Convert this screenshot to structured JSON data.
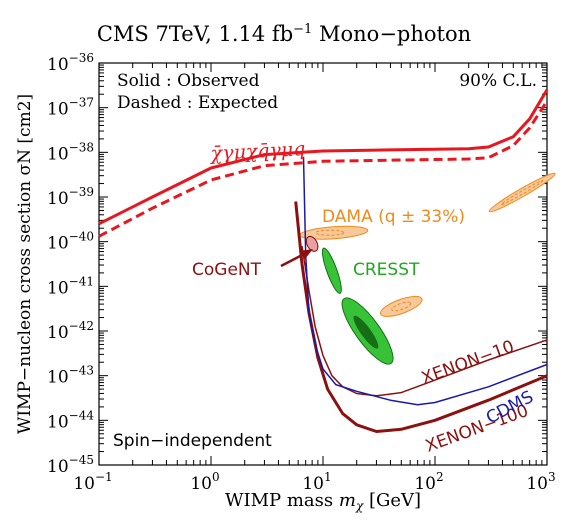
{
  "title_prefix": "CMS 7TeV, 1.14 fb",
  "title_exponent": "−1",
  "title_suffix": " Mono−photon",
  "colors": {
    "cms": "#e8171f",
    "xenon": "#8b1111",
    "cdms": "#1a1aa8",
    "cresst_fill": "#38c238",
    "cresst_dark": "#166e16",
    "dama_fill": "#f6c89a",
    "dama_edge": "#f08a1a",
    "cogent_fill": "#e8a0a0"
  },
  "chart_data": {
    "type": "line",
    "title": "CMS 7TeV, 1.14 fb−1 Mono−photon",
    "xlabel_prefix": "WIMP mass ",
    "xlabel_sym": "m",
    "xlabel_sub": "χ",
    "xlabel_suffix": " [GeV]",
    "ylabel": "WIMP−nucleon cross section σN [cm2]",
    "x_scale": "log",
    "y_scale": "log",
    "xlim": [
      0.1,
      1000
    ],
    "ylim": [
      1e-45,
      1e-36
    ],
    "x_ticks": [
      {
        "base": "10",
        "exp": "−1",
        "value": 0.1
      },
      {
        "base": "10",
        "exp": "0",
        "value": 1
      },
      {
        "base": "10",
        "exp": "1",
        "value": 10
      },
      {
        "base": "10",
        "exp": "2",
        "value": 100
      },
      {
        "base": "10",
        "exp": "3",
        "value": 1000
      }
    ],
    "y_ticks": [
      {
        "base": "10",
        "exp": "−45",
        "value": -45
      },
      {
        "base": "10",
        "exp": "−44",
        "value": -44
      },
      {
        "base": "10",
        "exp": "−43",
        "value": -43
      },
      {
        "base": "10",
        "exp": "−42",
        "value": -42
      },
      {
        "base": "10",
        "exp": "−41",
        "value": -41
      },
      {
        "base": "10",
        "exp": "−40",
        "value": -40
      },
      {
        "base": "10",
        "exp": "−39",
        "value": -39
      },
      {
        "base": "10",
        "exp": "−38",
        "value": -38
      },
      {
        "base": "10",
        "exp": "−37",
        "value": -37
      },
      {
        "base": "10",
        "exp": "−36",
        "value": -36
      }
    ],
    "annotations": {
      "solid": "Solid : Observed",
      "dashed": "Dashed : Expected",
      "cl": "90% C.L.",
      "spin": "Spin−independent",
      "operator": "χ̄γμχq̄γμq",
      "dama": "DAMA (q ± 33%)",
      "cogent": "CoGeNT",
      "cresst": "CRESST",
      "xenon10": "XENON−10",
      "xenon100": "XENON−100",
      "cdms": "CDMS"
    },
    "series": [
      {
        "name": "CMS observed",
        "style": "solid",
        "mass": [
          0.1,
          0.3,
          1,
          3,
          10,
          30,
          100,
          200,
          300,
          500,
          700,
          1000
        ],
        "log_sigma": [
          -39.6,
          -39.0,
          -38.35,
          -38.05,
          -37.97,
          -37.95,
          -37.93,
          -37.92,
          -37.88,
          -37.65,
          -37.25,
          -36.6
        ]
      },
      {
        "name": "CMS expected",
        "style": "dashed",
        "mass": [
          0.1,
          0.3,
          1,
          3,
          10,
          30,
          100,
          200,
          300,
          500,
          700,
          1000
        ],
        "log_sigma": [
          -39.88,
          -39.25,
          -38.62,
          -38.3,
          -38.2,
          -38.18,
          -38.16,
          -38.15,
          -38.12,
          -37.85,
          -37.45,
          -36.85
        ]
      },
      {
        "name": "XENON-100",
        "mass": [
          5.7,
          6.5,
          7.5,
          9,
          11,
          15,
          20,
          30,
          50,
          100,
          300,
          1000
        ],
        "log_sigma": [
          -39.1,
          -40.5,
          -41.6,
          -42.6,
          -43.3,
          -43.85,
          -44.1,
          -44.25,
          -44.2,
          -44.0,
          -43.55,
          -43.0
        ]
      },
      {
        "name": "XENON-10",
        "mass": [
          6.5,
          7.5,
          8.5,
          10,
          12,
          15,
          20,
          30,
          50,
          100,
          300,
          1000
        ],
        "log_sigma": [
          -40.1,
          -41.1,
          -41.9,
          -42.55,
          -43.0,
          -43.25,
          -43.4,
          -43.45,
          -43.38,
          -43.1,
          -42.65,
          -42.2
        ]
      },
      {
        "name": "CDMS",
        "mass": [
          6.7,
          7.0,
          7.5,
          8.5,
          10,
          13,
          20,
          40,
          70,
          100,
          300,
          1000
        ],
        "log_sigma": [
          -38.1,
          -40.3,
          -41.6,
          -42.3,
          -42.85,
          -43.2,
          -43.35,
          -43.55,
          -43.65,
          -43.6,
          -43.25,
          -42.75
        ]
      }
    ],
    "regions": [
      {
        "name": "DAMA low",
        "center_mass": 12.5,
        "center_log_sigma": -39.8
      },
      {
        "name": "DAMA mid",
        "center_mass": 50,
        "center_log_sigma": -41.45
      },
      {
        "name": "DAMA high",
        "center_mass": 600,
        "center_log_sigma": -38.9
      },
      {
        "name": "CoGeNT",
        "center_mass": 8,
        "center_log_sigma": -40.05
      },
      {
        "name": "CRESST 1",
        "center_mass": 12,
        "center_log_sigma": -40.65
      },
      {
        "name": "CRESST 2",
        "center_mass": 25,
        "center_log_sigma": -42.0
      }
    ]
  }
}
